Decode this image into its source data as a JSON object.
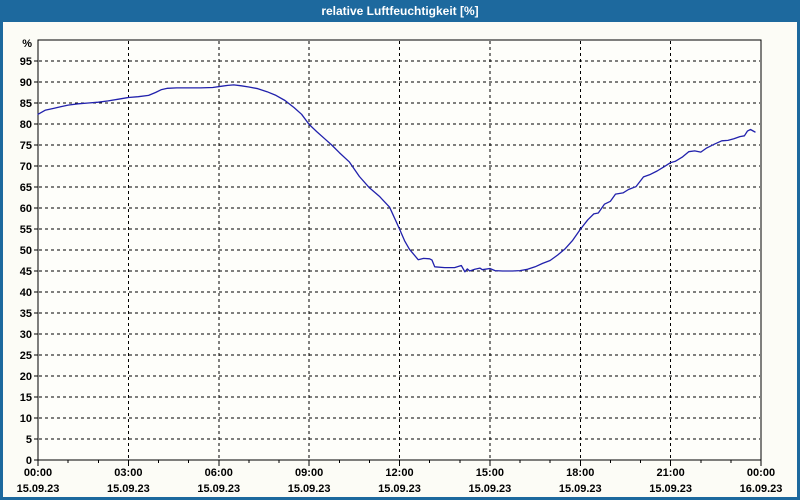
{
  "window": {
    "title": "relative Luftfeuchtigkeit [%]"
  },
  "colors": {
    "titlebar_bg": "#1D699E",
    "titlebar_text": "#FFFFFF",
    "frame": "#1D699E",
    "content_bg": "#FCFCF6",
    "plot_bg": "#FEFEFA",
    "grid_color": "#000000",
    "axis_color": "#000000",
    "series_color": "#2121AC",
    "label_color": "#000000"
  },
  "chart_data": {
    "type": "line",
    "title": "relative Luftfeuchtigkeit [%]",
    "grid": "dashed",
    "legend": "none",
    "y_axis": {
      "unit_label": "%",
      "min": 0,
      "max": 100,
      "tick_step": 5,
      "tick_labels": [
        "95",
        "90",
        "85",
        "80",
        "75",
        "70",
        "65",
        "60",
        "55",
        "50",
        "45",
        "40",
        "35",
        "30",
        "25",
        "20",
        "15",
        "10",
        "5",
        "0"
      ]
    },
    "x_axis": {
      "range_hours": [
        0,
        24
      ],
      "minor_tick_hours": 1,
      "major_ticks": [
        {
          "hour": 0,
          "time": "00:00",
          "date": "15.09.23"
        },
        {
          "hour": 3,
          "time": "03:00",
          "date": "15.09.23"
        },
        {
          "hour": 6,
          "time": "06:00",
          "date": "15.09.23"
        },
        {
          "hour": 9,
          "time": "09:00",
          "date": "15.09.23"
        },
        {
          "hour": 12,
          "time": "12:00",
          "date": "15.09.23"
        },
        {
          "hour": 15,
          "time": "15:00",
          "date": "15.09.23"
        },
        {
          "hour": 18,
          "time": "18:00",
          "date": "15.09.23"
        },
        {
          "hour": 21,
          "time": "21:00",
          "date": "15.09.23"
        },
        {
          "hour": 24,
          "time": "00:00",
          "date": "16.09.23"
        }
      ]
    },
    "series": [
      {
        "name": "relative Luftfeuchtigkeit",
        "x_hours": [
          0,
          0.25,
          0.5,
          0.75,
          1.0,
          1.33,
          1.67,
          2.0,
          2.33,
          2.67,
          3.0,
          3.33,
          3.67,
          3.9,
          4.1,
          4.3,
          4.6,
          5.0,
          5.4,
          5.8,
          6.1,
          6.3,
          6.5,
          6.75,
          7.0,
          7.3,
          7.6,
          7.9,
          8.2,
          8.5,
          8.75,
          9.0,
          9.25,
          9.5,
          9.75,
          10.0,
          10.33,
          10.67,
          11.0,
          11.33,
          11.67,
          12.0,
          12.17,
          12.33,
          12.62,
          12.8,
          13.0,
          13.08,
          13.17,
          13.5,
          13.83,
          14.05,
          14.17,
          14.25,
          14.33,
          14.5,
          14.67,
          14.75,
          15.0,
          15.17,
          15.42,
          15.75,
          16.0,
          16.25,
          16.5,
          16.75,
          17.0,
          17.25,
          17.5,
          17.75,
          18.0,
          18.25,
          18.45,
          18.6,
          18.8,
          19.0,
          19.17,
          19.42,
          19.6,
          19.85,
          20.1,
          20.3,
          20.55,
          20.8,
          21.0,
          21.15,
          21.4,
          21.6,
          21.8,
          22.0,
          22.2,
          22.45,
          22.7,
          22.9,
          23.1,
          23.3,
          23.45,
          23.55,
          23.65,
          23.8
        ],
        "values": [
          82.3,
          83.3,
          83.7,
          84.1,
          84.5,
          84.8,
          85.0,
          85.2,
          85.5,
          85.9,
          86.3,
          86.5,
          86.8,
          87.5,
          88.2,
          88.5,
          88.6,
          88.6,
          88.6,
          88.7,
          89.0,
          89.2,
          89.3,
          89.1,
          88.8,
          88.4,
          87.7,
          86.8,
          85.6,
          83.9,
          82.3,
          79.9,
          78.2,
          76.6,
          75.0,
          73.2,
          71.0,
          67.5,
          64.8,
          62.8,
          60.2,
          55.0,
          52.2,
          50.2,
          47.7,
          48.0,
          47.9,
          47.6,
          46.0,
          45.8,
          45.8,
          46.3,
          44.8,
          45.5,
          45.0,
          45.4,
          45.7,
          45.3,
          45.6,
          45.1,
          45.0,
          45.0,
          45.1,
          45.4,
          46.0,
          46.8,
          47.5,
          48.8,
          50.3,
          52.3,
          54.9,
          57.2,
          58.6,
          58.8,
          60.9,
          61.6,
          63.3,
          63.6,
          64.4,
          65.1,
          67.4,
          67.9,
          68.8,
          69.9,
          70.8,
          71.1,
          72.2,
          73.4,
          73.6,
          73.3,
          74.3,
          75.2,
          76.0,
          76.1,
          76.5,
          77.0,
          77.2,
          78.3,
          78.7,
          78.1
        ]
      }
    ]
  }
}
